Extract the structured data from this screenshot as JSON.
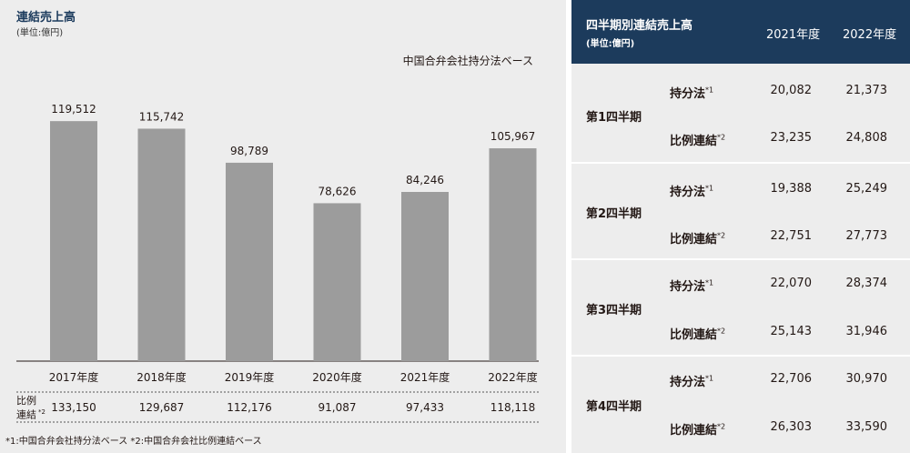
{
  "left": {
    "title": "連結売上高",
    "unit": "(単位:億円)",
    "basis": "中国合弁会社持分法ベース",
    "proportional_label_line1": "比例",
    "proportional_label_line2": "連結",
    "proportional_sup": "*2",
    "footnote": "*1:中国合弁会社持分法ベース   *2:中国合弁会社比例連結ベース"
  },
  "chart_data": {
    "type": "bar",
    "categories": [
      "2017年度",
      "2018年度",
      "2019年度",
      "2020年度",
      "2021年度",
      "2022年度"
    ],
    "values": [
      119512,
      115742,
      98789,
      78626,
      84246,
      105967
    ],
    "value_labels": [
      "119,512",
      "115,742",
      "98,789",
      "78,626",
      "84,246",
      "105,967"
    ],
    "proportional_consolidated_values": [
      "133,150",
      "129,687",
      "112,176",
      "91,087",
      "97,433",
      "118,118"
    ],
    "title": "連結売上高",
    "subtitle": "(単位:億円)",
    "ylim": [
      0,
      130000
    ],
    "bar_color": "#9c9c9c"
  },
  "table": {
    "title": "四半期別連結売上高",
    "unit": "(単位:億円)",
    "year_headers": [
      "2021年度",
      "2022年度"
    ],
    "quarters": [
      {
        "label": "第1四半期",
        "rows": [
          {
            "label": "持分法",
            "sup": "*1",
            "v2021": "20,082",
            "v2022": "21,373"
          },
          {
            "label": "比例連結",
            "sup": "*2",
            "v2021": "23,235",
            "v2022": "24,808"
          }
        ]
      },
      {
        "label": "第2四半期",
        "rows": [
          {
            "label": "持分法",
            "sup": "*1",
            "v2021": "19,388",
            "v2022": "25,249"
          },
          {
            "label": "比例連結",
            "sup": "*2",
            "v2021": "22,751",
            "v2022": "27,773"
          }
        ]
      },
      {
        "label": "第3四半期",
        "rows": [
          {
            "label": "持分法",
            "sup": "*1",
            "v2021": "22,070",
            "v2022": "28,374"
          },
          {
            "label": "比例連結",
            "sup": "*2",
            "v2021": "25,143",
            "v2022": "31,946"
          }
        ]
      },
      {
        "label": "第4四半期",
        "rows": [
          {
            "label": "持分法",
            "sup": "*1",
            "v2021": "22,706",
            "v2022": "30,970"
          },
          {
            "label": "比例連結",
            "sup": "*2",
            "v2021": "26,303",
            "v2022": "33,590"
          }
        ]
      }
    ]
  }
}
